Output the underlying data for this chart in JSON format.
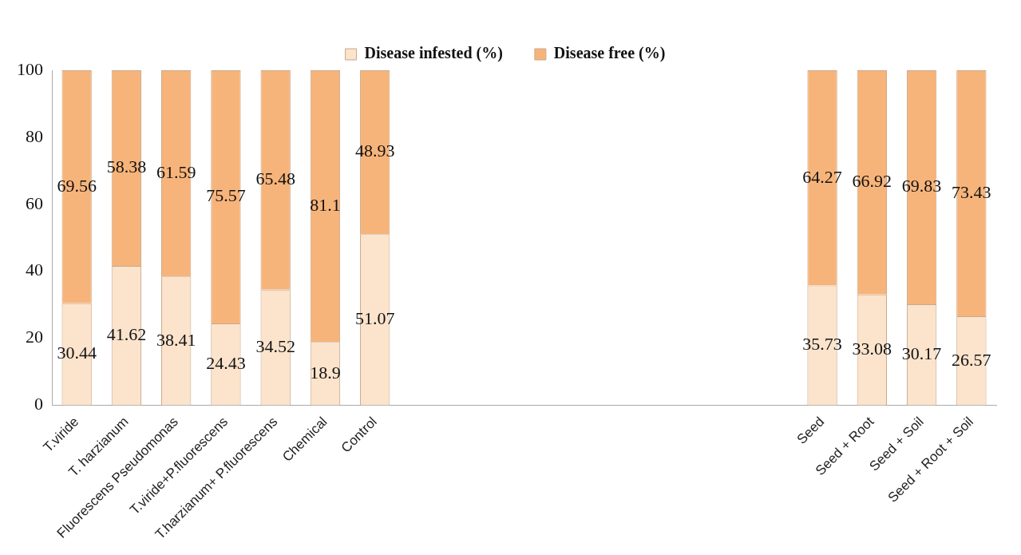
{
  "chart_data": {
    "type": "bar",
    "stacked": true,
    "categories": [
      "T.viride",
      "T. harzianum",
      "Fluorescens Pseudomonas",
      "T.viride+P.fluorescens",
      "T.harzianum+ P.fluorescens",
      "Chemical",
      "Control",
      null,
      null,
      null,
      null,
      null,
      null,
      null,
      null,
      "Seed",
      "Seed + Root",
      "Seed + Soil",
      "Seed + Root + Soil"
    ],
    "series": [
      {
        "name": "Disease infested (%)",
        "color": "#fbe3cc",
        "values": [
          30.44,
          41.62,
          38.41,
          24.43,
          34.52,
          18.9,
          51.07,
          null,
          null,
          null,
          null,
          null,
          null,
          null,
          null,
          35.73,
          33.08,
          30.17,
          26.57
        ]
      },
      {
        "name": "Disease free (%)",
        "color": "#f7b47a",
        "values": [
          69.56,
          58.38,
          61.59,
          75.57,
          65.48,
          81.1,
          48.93,
          null,
          null,
          null,
          null,
          null,
          null,
          null,
          null,
          64.27,
          66.92,
          69.83,
          73.43
        ]
      }
    ],
    "ylim": [
      0,
      100
    ],
    "yticks": [
      0,
      20,
      40,
      60,
      80,
      100
    ],
    "grid": false,
    "legend": "top",
    "data_labels": true
  }
}
